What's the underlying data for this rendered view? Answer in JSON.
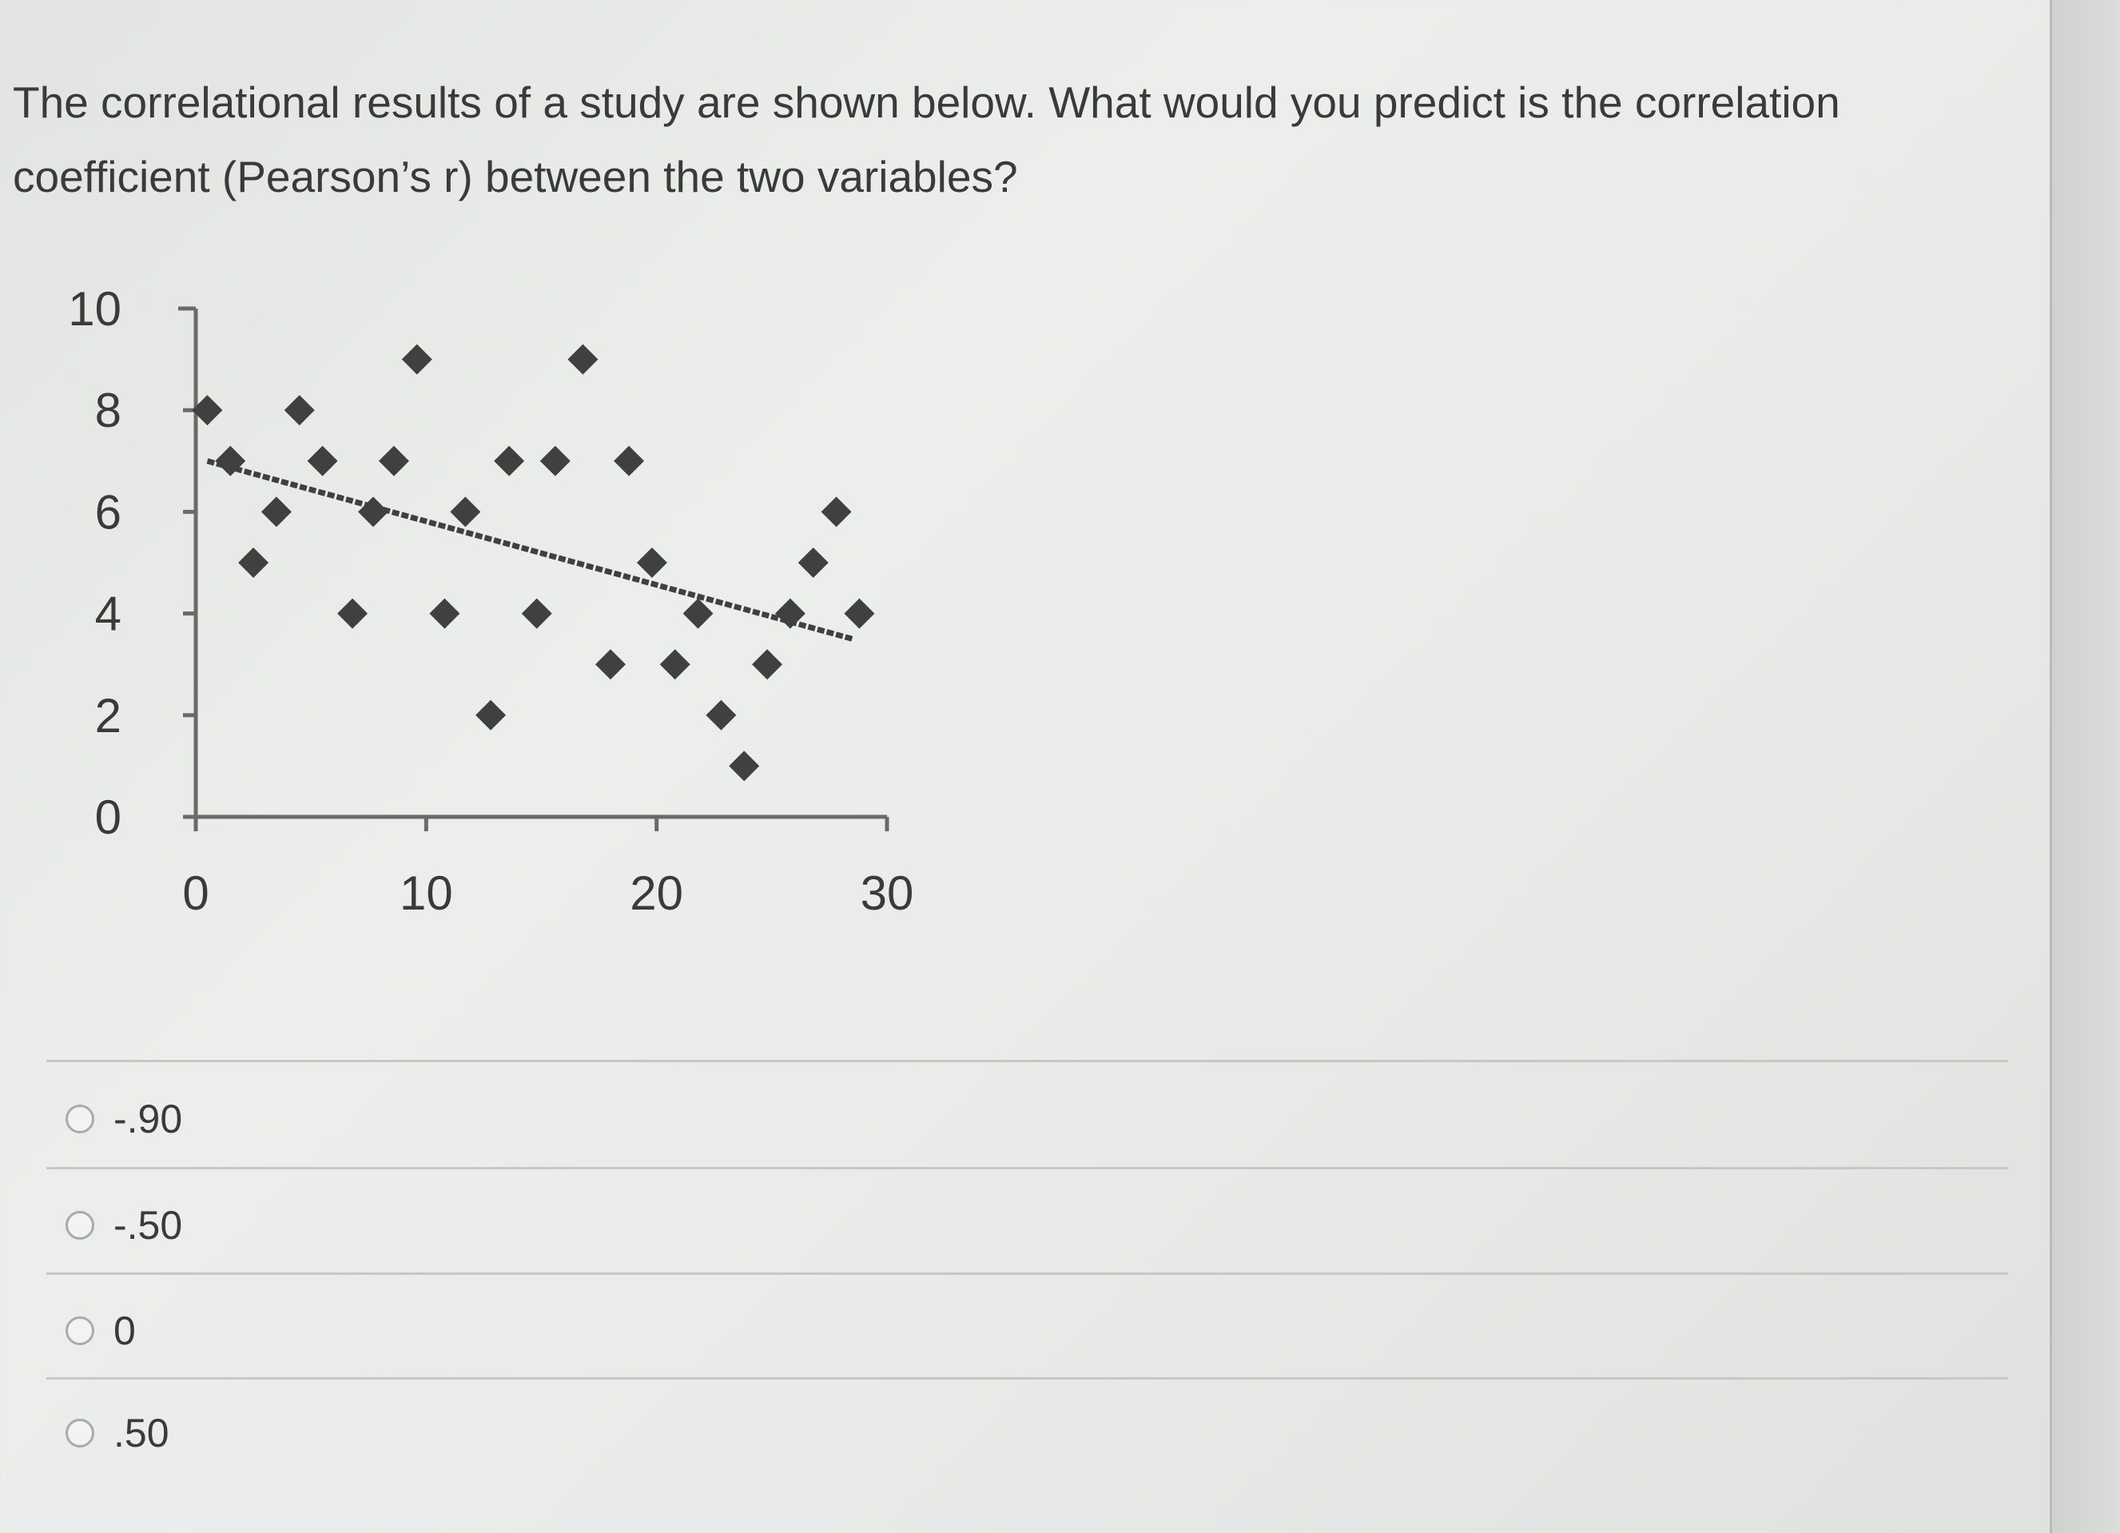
{
  "question": {
    "line1": "The correlational results of a study are shown below.  What would you predict is the correlation",
    "line2": "coefficient (Pearson’s r) between the two variables?"
  },
  "chart_data": {
    "type": "scatter",
    "title": "",
    "xlabel": "",
    "ylabel": "",
    "xlim": [
      0,
      30
    ],
    "ylim": [
      0,
      10
    ],
    "x_ticks": [
      "0",
      "10",
      "20",
      "30"
    ],
    "y_ticks": [
      "0",
      "2",
      "4",
      "6",
      "8",
      "10"
    ],
    "grid": false,
    "series": [
      {
        "points": [
          [
            0.5,
            8
          ],
          [
            1.5,
            7
          ],
          [
            2.5,
            5
          ],
          [
            3.5,
            6
          ],
          [
            4.5,
            8
          ],
          [
            5.5,
            7
          ],
          [
            6.8,
            4
          ],
          [
            7.7,
            6
          ],
          [
            8.6,
            7
          ],
          [
            9.6,
            9
          ],
          [
            10.8,
            4
          ],
          [
            11.7,
            6
          ],
          [
            12.8,
            2
          ],
          [
            13.6,
            7
          ],
          [
            14.8,
            4
          ],
          [
            15.6,
            7
          ],
          [
            16.8,
            9
          ],
          [
            18.0,
            3
          ],
          [
            18.8,
            7
          ],
          [
            19.8,
            5
          ],
          [
            20.8,
            3
          ],
          [
            21.8,
            4
          ],
          [
            22.8,
            2
          ],
          [
            23.8,
            1
          ],
          [
            24.8,
            3
          ],
          [
            25.8,
            4
          ],
          [
            26.8,
            5
          ],
          [
            27.8,
            6
          ],
          [
            28.8,
            4
          ]
        ],
        "color": "#404040",
        "marker": "diamond"
      }
    ],
    "trendline": {
      "type": "linear",
      "from": [
        0.5,
        7.0
      ],
      "to": [
        28.5,
        3.5
      ],
      "color": "#404040"
    }
  },
  "options": [
    {
      "label": "-.90",
      "selected": false
    },
    {
      "label": "-.50",
      "selected": false
    },
    {
      "label": "0",
      "selected": false
    },
    {
      "label": ".50",
      "selected": false
    }
  ]
}
